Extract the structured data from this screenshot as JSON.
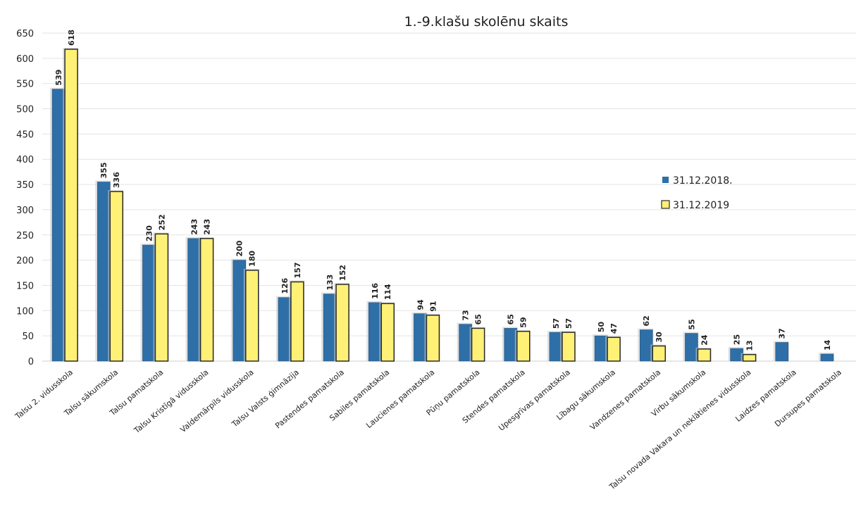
{
  "chart_data": {
    "type": "bar",
    "title": "1.-9.klašu skolēnu skaits",
    "xlabel": "",
    "ylabel": "",
    "ylim": [
      0,
      650
    ],
    "yticks": [
      0,
      50,
      100,
      150,
      200,
      250,
      300,
      350,
      400,
      450,
      500,
      550,
      600,
      650
    ],
    "grid": true,
    "legend_position": "right",
    "categories": [
      "Talsu 2. vidusskola",
      "Talsu sākumskola",
      "Talsu pamatskola",
      "Talsu Kristīgā vidusskola",
      "Valdemārpils vidusskola",
      "Talsu Valsts ģimnāzija",
      "Pastendes pamatskola",
      "Sabiles pamatskola",
      "Laucienes pamatskola",
      "Pūņu pamatskola",
      "Stendes pamatskola",
      "Upesgrīvas pamatskola",
      "Lībagu sākumskola",
      "Vandzenes pamatskola",
      "Virbu sākumskola",
      "Talsu novada Vakara un neklātienes vidusskola",
      "Laidzes pamatskola",
      "Dursupes pamatskola"
    ],
    "series": [
      {
        "name": "31.12.2018.",
        "color": "#2e6fa7",
        "values": [
          539,
          355,
          230,
          243,
          200,
          126,
          133,
          116,
          94,
          73,
          65,
          57,
          50,
          62,
          55,
          25,
          37,
          14
        ]
      },
      {
        "name": "31.12.2019",
        "color": "#fff176",
        "values": [
          618,
          336,
          252,
          243,
          180,
          157,
          152,
          114,
          91,
          65,
          59,
          57,
          47,
          30,
          24,
          13,
          null,
          null
        ]
      }
    ]
  }
}
